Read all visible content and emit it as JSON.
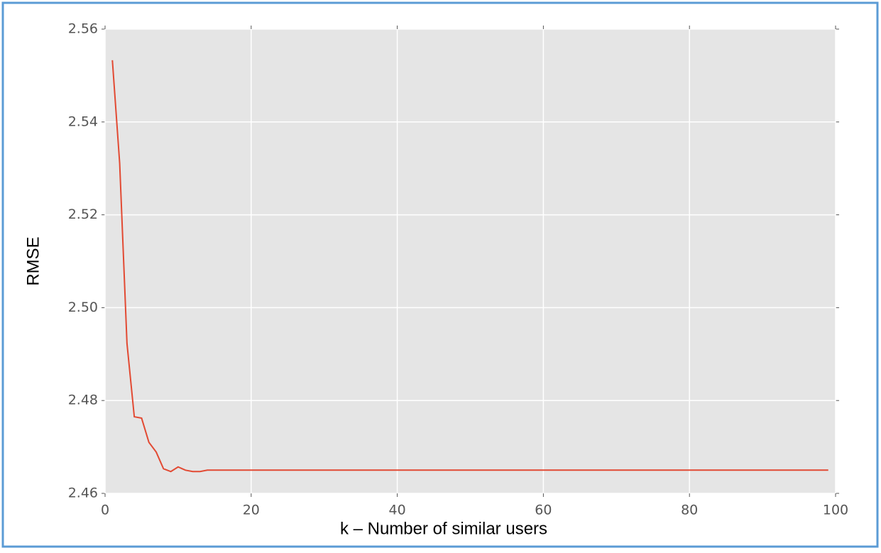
{
  "chart_data": {
    "type": "line",
    "x_label": "k – Number of similar users",
    "y_label": "RMSE",
    "x": [
      1,
      2,
      3,
      4,
      5,
      6,
      7,
      8,
      9,
      10,
      11,
      12,
      13,
      14,
      15,
      16,
      17,
      18,
      19,
      20,
      21,
      22,
      23,
      24,
      25,
      26,
      27,
      28,
      29,
      30,
      31,
      32,
      33,
      34,
      35,
      36,
      37,
      38,
      39,
      40,
      41,
      42,
      43,
      44,
      45,
      46,
      47,
      48,
      49,
      50,
      51,
      52,
      53,
      54,
      55,
      56,
      57,
      58,
      59,
      60,
      61,
      62,
      63,
      64,
      65,
      66,
      67,
      68,
      69,
      70,
      71,
      72,
      73,
      74,
      75,
      76,
      77,
      78,
      79,
      80,
      81,
      82,
      83,
      84,
      85,
      86,
      87,
      88,
      89,
      90,
      91,
      92,
      93,
      94,
      95,
      96,
      97,
      98,
      99
    ],
    "series": [
      {
        "color": "#e24a33",
        "values": [
          2.5533,
          2.5311,
          2.4923,
          2.4765,
          2.4762,
          2.471,
          2.4689,
          2.4653,
          2.4647,
          2.4657,
          2.465,
          2.4647,
          2.4647,
          2.465,
          2.465,
          2.465,
          2.465,
          2.465,
          2.465,
          2.465,
          2.465,
          2.465,
          2.465,
          2.465,
          2.465,
          2.465,
          2.465,
          2.465,
          2.465,
          2.465,
          2.465,
          2.465,
          2.465,
          2.465,
          2.465,
          2.465,
          2.465,
          2.465,
          2.465,
          2.465,
          2.465,
          2.465,
          2.465,
          2.465,
          2.465,
          2.465,
          2.465,
          2.465,
          2.465,
          2.465,
          2.465,
          2.465,
          2.465,
          2.465,
          2.465,
          2.465,
          2.465,
          2.465,
          2.465,
          2.465,
          2.465,
          2.465,
          2.465,
          2.465,
          2.465,
          2.465,
          2.465,
          2.465,
          2.465,
          2.465,
          2.465,
          2.465,
          2.465,
          2.465,
          2.465,
          2.465,
          2.465,
          2.465,
          2.465,
          2.465,
          2.465,
          2.465,
          2.465,
          2.465,
          2.465,
          2.465,
          2.465,
          2.465,
          2.465,
          2.465,
          2.465,
          2.465,
          2.465,
          2.465,
          2.465,
          2.465,
          2.465,
          2.465,
          2.465
        ]
      }
    ],
    "xlim": [
      0,
      100
    ],
    "xticks": [
      0,
      20,
      40,
      60,
      80,
      100
    ],
    "ylim": [
      2.46,
      2.56
    ],
    "yticks": [
      2.46,
      2.48,
      {
        "value": 2.5,
        "label": "2.50"
      },
      2.52,
      2.54,
      2.56
    ],
    "grid": true
  }
}
